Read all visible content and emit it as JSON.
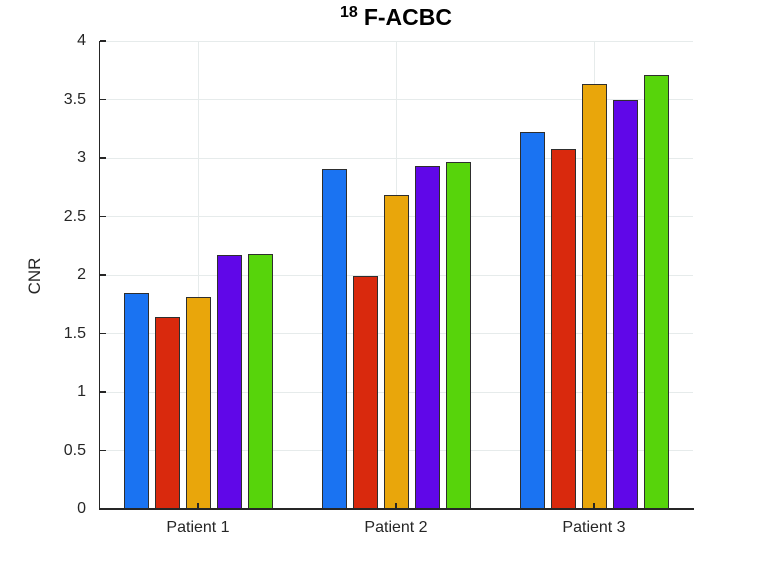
{
  "chart_data": {
    "type": "bar",
    "title_superscript": "18",
    "title_main": "F-ACBC",
    "ylabel": "CNR",
    "xlabel": "",
    "categories": [
      "Patient 1",
      "Patient 2",
      "Patient 3"
    ],
    "series": [
      {
        "name": "blue",
        "color": "#1a73f2",
        "values": [
          1.85,
          2.91,
          3.22
        ]
      },
      {
        "name": "red",
        "color": "#d9290d",
        "values": [
          1.64,
          1.99,
          3.08
        ]
      },
      {
        "name": "orange",
        "color": "#e9a60b",
        "values": [
          1.81,
          2.68,
          3.63
        ]
      },
      {
        "name": "purple",
        "color": "#6007e8",
        "values": [
          2.17,
          2.93,
          3.5
        ]
      },
      {
        "name": "green",
        "color": "#57d40b",
        "values": [
          2.18,
          2.97,
          3.71
        ]
      }
    ],
    "ylim": [
      0,
      4
    ],
    "yticks": [
      0,
      0.5,
      1,
      1.5,
      2,
      2.5,
      3,
      3.5,
      4
    ],
    "ytick_labels": [
      "0",
      "0.5",
      "1",
      "1.5",
      "2",
      "2.5",
      "3",
      "3.5",
      "4"
    ],
    "grid": "horizontal lines at every y tick, vertical line at each category center",
    "legend": "none",
    "colors": {
      "background": "#ffffff",
      "grid": "#e6ebeb",
      "axis": "#262626",
      "bar_edge": "#2e2e2e",
      "tick_text": "#262626",
      "title_text": "#000000"
    }
  }
}
